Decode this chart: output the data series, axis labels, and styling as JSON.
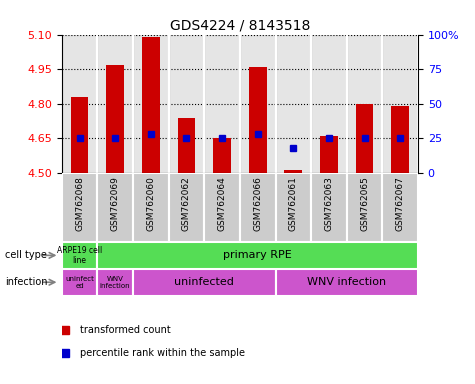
{
  "title": "GDS4224 / 8143518",
  "samples": [
    "GSM762068",
    "GSM762069",
    "GSM762060",
    "GSM762062",
    "GSM762064",
    "GSM762066",
    "GSM762061",
    "GSM762063",
    "GSM762065",
    "GSM762067"
  ],
  "transformed_counts": [
    4.83,
    4.97,
    5.09,
    4.74,
    4.65,
    4.96,
    4.51,
    4.66,
    4.8,
    4.79
  ],
  "percentile_ranks": [
    25,
    25,
    28,
    25,
    25,
    28,
    18,
    25,
    25,
    25
  ],
  "ylim": [
    4.5,
    5.1
  ],
  "yticks": [
    4.5,
    4.65,
    4.8,
    4.95,
    5.1
  ],
  "right_yticks": [
    0,
    25,
    50,
    75,
    100
  ],
  "bar_color": "#cc0000",
  "dot_color": "#0000cc",
  "bar_width": 0.5,
  "arpe_color": "#55dd55",
  "primary_rpe_color": "#55dd55",
  "infection_color": "#cc55cc",
  "col_bg_color": "#cccccc",
  "col_sep_color": "#ffffff"
}
